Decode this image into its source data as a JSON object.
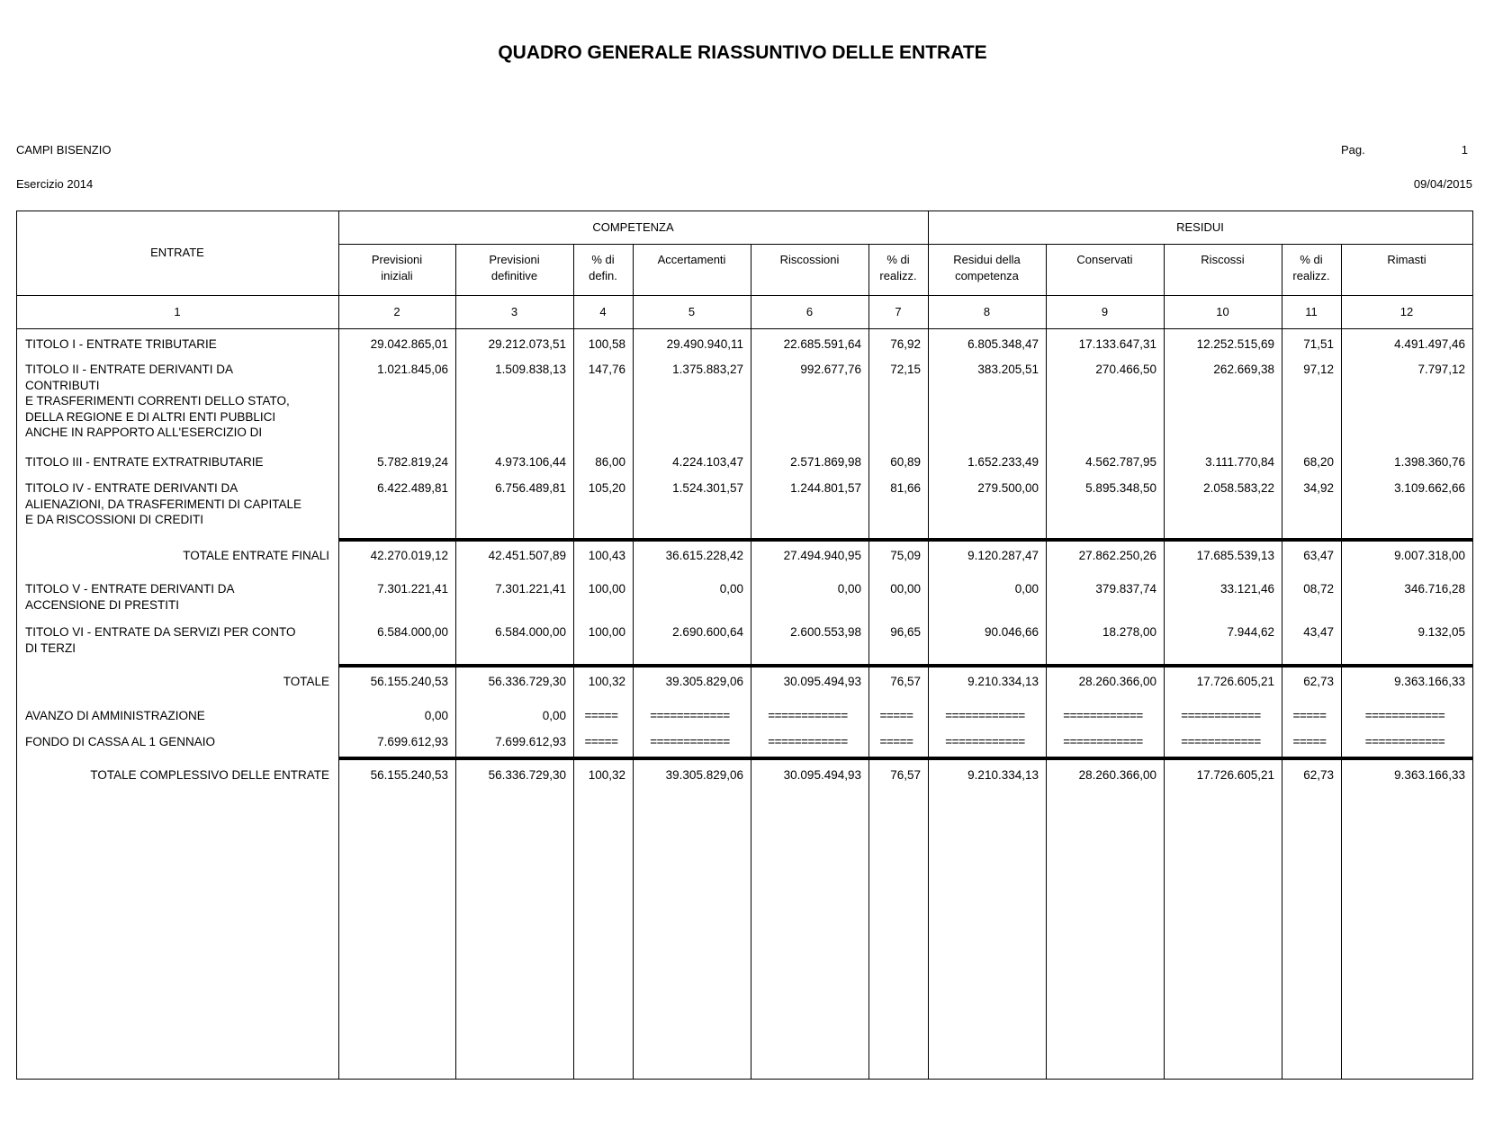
{
  "title": "QUADRO GENERALE RIASSUNTIVO DELLE ENTRATE",
  "ente": "CAMPI BISENZIO",
  "esercizio": "Esercizio 2014",
  "page_label": "Pag.",
  "page_number": "1",
  "date": "09/04/2015",
  "header": {
    "entrate": "ENTRATE",
    "competenza": "COMPETENZA",
    "residui": "RESIDUI",
    "columns": [
      "Previsioni\niniziali",
      "Previsioni\ndefinitive",
      "% di\ndefin.",
      "Accertamenti",
      "Riscossioni",
      "% di\nrealizz.",
      "Residui della\ncompetenza",
      "Conservati",
      "Riscossi",
      "% di\nrealizz.",
      "Rimasti"
    ],
    "numbers": [
      "1",
      "2",
      "3",
      "4",
      "5",
      "6",
      "7",
      "8",
      "9",
      "10",
      "11",
      "12"
    ]
  },
  "rows": [
    {
      "label": "TITOLO I - ENTRATE TRIBUTARIE",
      "values": [
        "29.042.865,01",
        "29.212.073,51",
        "100,58",
        "29.490.940,11",
        "22.685.591,64",
        "76,92",
        "6.805.348,47",
        "17.133.647,31",
        "12.252.515,69",
        "71,51",
        "4.491.497,46"
      ]
    },
    {
      "label": "TITOLO II - ENTRATE DERIVANTI DA\nCONTRIBUTI\nE TRASFERIMENTI CORRENTI DELLO STATO,\nDELLA REGIONE E DI ALTRI ENTI PUBBLICI\nANCHE IN RAPPORTO ALL'ESERCIZIO DI",
      "values": [
        "1.021.845,06",
        "1.509.838,13",
        "147,76",
        "1.375.883,27",
        "992.677,76",
        "72,15",
        "383.205,51",
        "270.466,50",
        "262.669,38",
        "97,12",
        "7.797,12"
      ]
    },
    {
      "label": "TITOLO III - ENTRATE EXTRATRIBUTARIE",
      "values": [
        "5.782.819,24",
        "4.973.106,44",
        "86,00",
        "4.224.103,47",
        "2.571.869,98",
        "60,89",
        "1.652.233,49",
        "4.562.787,95",
        "3.111.770,84",
        "68,20",
        "1.398.360,76"
      ]
    },
    {
      "label": "TITOLO IV - ENTRATE DERIVANTI DA\nALIENAZIONI, DA TRASFERIMENTI DI CAPITALE\nE DA RISCOSSIONI DI CREDITI",
      "values": [
        "6.422.489,81",
        "6.756.489,81",
        "105,20",
        "1.524.301,57",
        "1.244.801,57",
        "81,66",
        "279.500,00",
        "5.895.348,50",
        "2.058.583,22",
        "34,92",
        "3.109.662,66"
      ]
    },
    {
      "label": "TOTALE ENTRATE FINALI",
      "total": true,
      "values": [
        "42.270.019,12",
        "42.451.507,89",
        "100,43",
        "36.615.228,42",
        "27.494.940,95",
        "75,09",
        "9.120.287,47",
        "27.862.250,26",
        "17.685.539,13",
        "63,47",
        "9.007.318,00"
      ]
    },
    {
      "label": "TITOLO V - ENTRATE DERIVANTI DA\nACCENSIONE DI PRESTITI",
      "values": [
        "7.301.221,41",
        "7.301.221,41",
        "100,00",
        "0,00",
        "0,00",
        "00,00",
        "0,00",
        "379.837,74",
        "33.121,46",
        "08,72",
        "346.716,28"
      ]
    },
    {
      "label": "TITOLO VI - ENTRATE DA SERVIZI PER CONTO\nDI TERZI",
      "values": [
        "6.584.000,00",
        "6.584.000,00",
        "100,00",
        "2.690.600,64",
        "2.600.553,98",
        "96,65",
        "90.046,66",
        "18.278,00",
        "7.944,62",
        "43,47",
        "9.132,05"
      ]
    },
    {
      "label": "TOTALE",
      "total": true,
      "values": [
        "56.155.240,53",
        "56.336.729,30",
        "100,32",
        "39.305.829,06",
        "30.095.494,93",
        "76,57",
        "9.210.334,13",
        "28.260.366,00",
        "17.726.605,21",
        "62,73",
        "9.363.166,33"
      ]
    },
    {
      "label": "AVANZO DI AMMINISTRAZIONE",
      "values": [
        "0,00",
        "0,00",
        "=====",
        "============",
        "============",
        "=====",
        "============",
        "============",
        "============",
        "=====",
        "============"
      ]
    },
    {
      "label": "FONDO DI CASSA AL 1 GENNAIO",
      "values": [
        "7.699.612,93",
        "7.699.612,93",
        "=====",
        "============",
        "============",
        "=====",
        "============",
        "============",
        "============",
        "=====",
        "============"
      ]
    },
    {
      "label": "TOTALE COMPLESSIVO DELLE ENTRATE",
      "total": true,
      "values": [
        "56.155.240,53",
        "56.336.729,30",
        "100,32",
        "39.305.829,06",
        "30.095.494,93",
        "76,57",
        "9.210.334,13",
        "28.260.366,00",
        "17.726.605,21",
        "62,73",
        "9.363.166,33"
      ]
    }
  ]
}
